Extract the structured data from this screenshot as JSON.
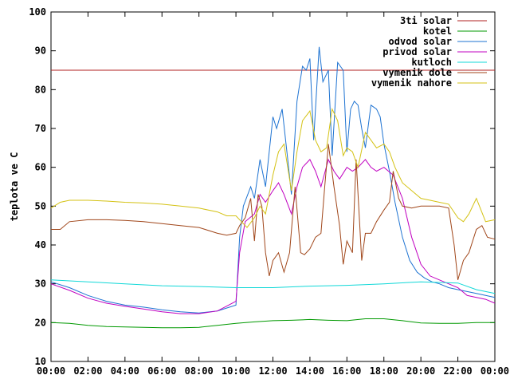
{
  "chart_data": {
    "type": "line",
    "ylabel": "teplota ve C",
    "xlabel": "",
    "title": "",
    "ylim": [
      10,
      100
    ],
    "xlim": [
      0,
      24
    ],
    "legend_position": "top-right",
    "grid": false,
    "yticks": [
      "10",
      "20",
      "30",
      "40",
      "50",
      "60",
      "70",
      "80",
      "90",
      "100"
    ],
    "xticks": [
      "00:00",
      "02:00",
      "04:00",
      "06:00",
      "08:00",
      "10:00",
      "12:00",
      "14:00",
      "16:00",
      "18:00",
      "20:00",
      "22:00",
      "00:00"
    ],
    "series": [
      {
        "name": "3ti solar",
        "color": "#b22222",
        "x": [
          0,
          24
        ],
        "y": [
          85,
          85
        ]
      },
      {
        "name": "kotel",
        "color": "#009900",
        "x": [
          0,
          1,
          2,
          3,
          4,
          5,
          6,
          7,
          8,
          9,
          10,
          11,
          12,
          13,
          14,
          15,
          16,
          17,
          18,
          19,
          20,
          21,
          22,
          23,
          24
        ],
        "y": [
          20,
          19.8,
          19.3,
          19,
          18.9,
          18.8,
          18.7,
          18.7,
          18.8,
          19.3,
          19.8,
          20.2,
          20.5,
          20.6,
          20.8,
          20.6,
          20.5,
          21,
          21,
          20.5,
          19.9,
          19.8,
          19.8,
          20,
          20
        ]
      },
      {
        "name": "odvod solar",
        "color": "#1e73d2",
        "x": [
          0,
          1,
          2,
          3,
          4,
          5,
          6,
          7,
          8,
          9,
          10,
          10.2,
          10.4,
          10.8,
          11,
          11.3,
          11.6,
          12,
          12.2,
          12.5,
          12.8,
          13,
          13.3,
          13.6,
          13.8,
          14,
          14.2,
          14.5,
          14.7,
          15,
          15.2,
          15.5,
          15.8,
          16,
          16.2,
          16.4,
          16.6,
          16.8,
          17,
          17.3,
          17.6,
          17.8,
          18,
          18.3,
          18.6,
          19,
          19.4,
          19.8,
          20.2,
          20.6,
          21,
          21.5,
          22,
          22.5,
          23,
          23.5,
          24
        ],
        "y": [
          30.5,
          29,
          27,
          25.5,
          24.5,
          24,
          23.3,
          22.8,
          22.5,
          23,
          24.5,
          42,
          50,
          55,
          52,
          62,
          55,
          73,
          70,
          75,
          62,
          53,
          77,
          86,
          85,
          88,
          67,
          91,
          82,
          85,
          63,
          87,
          85,
          64,
          75,
          77,
          76,
          70,
          65,
          76,
          75,
          73,
          66,
          59,
          51,
          42,
          36,
          33,
          31.5,
          30.5,
          30,
          29,
          28.5,
          28,
          27.5,
          27,
          26.5
        ]
      },
      {
        "name": "privod solar",
        "color": "#c000c0",
        "x": [
          0,
          1,
          2,
          3,
          4,
          5,
          6,
          7,
          8,
          9,
          10,
          10.2,
          10.5,
          11,
          11.3,
          11.6,
          12,
          12.3,
          12.6,
          13,
          13.3,
          13.6,
          14,
          14.3,
          14.6,
          15,
          15.3,
          15.6,
          16,
          16.3,
          16.6,
          17,
          17.3,
          17.6,
          18,
          18.5,
          19,
          19.5,
          20,
          20.5,
          21,
          21.5,
          22,
          22.5,
          23,
          23.5,
          24
        ],
        "y": [
          30,
          28.3,
          26.3,
          25,
          24.2,
          23.5,
          22.8,
          22.3,
          22.3,
          23,
          25.5,
          38,
          46,
          48,
          53,
          51,
          54,
          56,
          53,
          48,
          55,
          60,
          62,
          59,
          55,
          62,
          59,
          57,
          60,
          59,
          60,
          62,
          60,
          59,
          60,
          58,
          52,
          42,
          35,
          32,
          31,
          30,
          29,
          27,
          26.5,
          26,
          25
        ]
      },
      {
        "name": "kutloch",
        "color": "#10d8d8",
        "x": [
          0,
          2,
          4,
          6,
          8,
          10,
          12,
          14,
          16,
          18,
          20,
          22,
          23,
          24
        ],
        "y": [
          31,
          30.5,
          30,
          29.5,
          29.3,
          29,
          29,
          29.4,
          29.6,
          30,
          30.5,
          30.2,
          28.5,
          27.5
        ]
      },
      {
        "name": "vymenik dole",
        "color": "#a0461a",
        "x": [
          0,
          0.5,
          1,
          2,
          3,
          4,
          5,
          6,
          7,
          8,
          9,
          9.5,
          10,
          10.2,
          10.5,
          10.8,
          11,
          11.2,
          11.4,
          11.6,
          11.8,
          12,
          12.3,
          12.6,
          12.9,
          13.2,
          13.5,
          13.7,
          14,
          14.3,
          14.6,
          14.8,
          15,
          15.3,
          15.6,
          15.8,
          16,
          16.3,
          16.5,
          16.8,
          17,
          17.3,
          17.6,
          18,
          18.3,
          18.5,
          18.8,
          19,
          19.5,
          20,
          20.5,
          21,
          21.5,
          21.8,
          22,
          22.3,
          22.6,
          23,
          23.3,
          23.6,
          24
        ],
        "y": [
          44,
          44,
          46,
          46.5,
          46.5,
          46.3,
          46,
          45.5,
          45,
          44.5,
          43,
          42.5,
          43,
          45,
          47,
          52,
          41,
          53,
          50,
          38,
          32,
          36,
          38,
          33,
          38,
          55,
          38,
          37.5,
          39,
          42,
          43,
          55,
          66,
          55,
          45,
          35,
          41,
          38,
          62,
          36,
          43,
          43,
          46,
          49,
          51,
          59,
          52,
          50,
          49.5,
          50,
          50,
          50,
          49.5,
          40,
          31,
          36,
          38,
          44,
          45,
          42,
          41.5
        ]
      },
      {
        "name": "vymenik nahore",
        "color": "#d4c214",
        "x": [
          0,
          0.5,
          1,
          2,
          3,
          4,
          5,
          6,
          7,
          8,
          9,
          9.5,
          10,
          10.3,
          10.6,
          11,
          11.3,
          11.6,
          12,
          12.3,
          12.6,
          13,
          13.3,
          13.6,
          14,
          14.3,
          14.6,
          14.9,
          15.2,
          15.5,
          15.8,
          16,
          16.3,
          16.6,
          17,
          17.3,
          17.6,
          18,
          18.3,
          18.6,
          19,
          19.5,
          20,
          20.5,
          21,
          21.5,
          22,
          22.3,
          22.6,
          23,
          23.5,
          24
        ],
        "y": [
          49.5,
          51,
          51.5,
          51.5,
          51.3,
          51,
          50.8,
          50.5,
          50,
          49.5,
          48.5,
          47.5,
          47.5,
          46,
          44.5,
          47,
          50,
          48,
          58,
          64,
          66,
          54,
          64,
          72,
          74.5,
          67,
          64,
          65,
          75,
          72,
          63,
          65,
          64,
          60,
          69,
          67,
          65,
          66,
          64,
          60,
          56,
          54,
          52,
          51.5,
          51,
          50.5,
          47,
          46,
          48,
          52,
          46,
          46.5
        ]
      }
    ]
  }
}
